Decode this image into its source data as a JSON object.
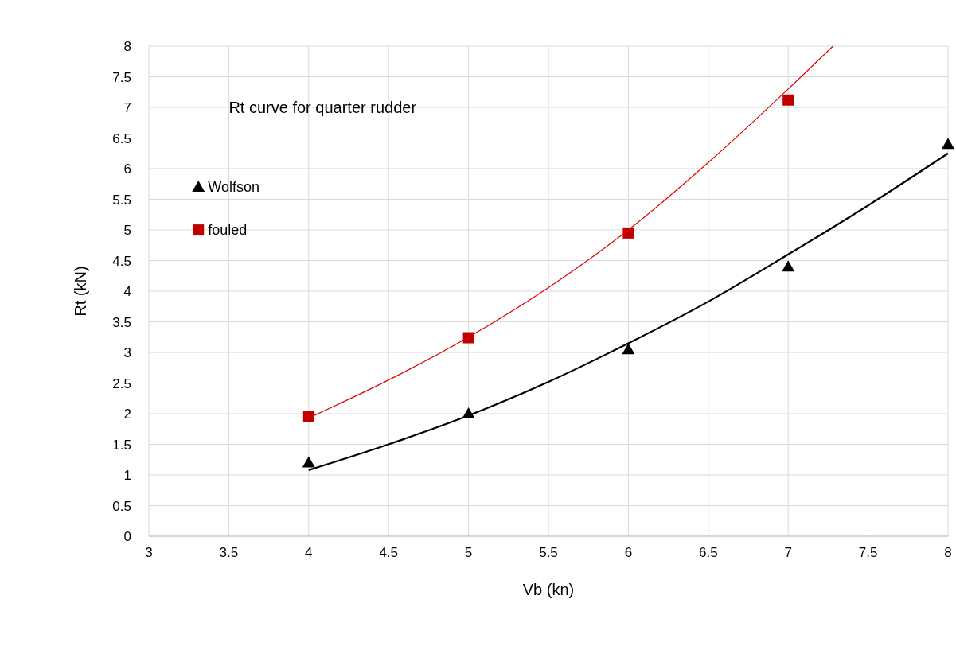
{
  "chart_data": {
    "type": "scatter",
    "title": "Rt curve for quarter rudder",
    "xlabel": "Vb (kn)",
    "ylabel": "Rt (kN)",
    "xlim": [
      3,
      8
    ],
    "xticks": [
      3,
      3.5,
      4,
      4.5,
      5,
      5.5,
      6,
      6.5,
      7,
      7.5,
      8
    ],
    "ylim": [
      0,
      8
    ],
    "yticks": [
      0,
      0.5,
      1,
      1.5,
      2,
      2.5,
      3,
      3.5,
      4,
      4.5,
      5,
      5.5,
      6,
      6.5,
      7,
      7.5,
      8
    ],
    "grid": true,
    "legend": "top left",
    "series": [
      {
        "name": "Wolfson",
        "color": "#000000",
        "marker": "triangle",
        "x": [
          4,
          5,
          6,
          7,
          8
        ],
        "values": [
          1.2,
          2.0,
          3.05,
          4.4,
          6.4
        ]
      },
      {
        "name": "fouled",
        "color": "#c00000",
        "marker": "square",
        "x": [
          4,
          5,
          6,
          7
        ],
        "values": [
          1.95,
          3.24,
          4.95,
          7.12
        ]
      },
      {
        "type": "line",
        "color": "#000000",
        "x": [
          4,
          4.5,
          5,
          5.5,
          6,
          6.5,
          7,
          7.5,
          8
        ],
        "values": [
          1.08,
          1.5,
          1.97,
          2.52,
          3.15,
          3.83,
          4.6,
          5.4,
          6.25
        ]
      },
      {
        "type": "line",
        "color": "#e00000",
        "x": [
          4,
          4.5,
          5,
          5.5,
          6,
          6.5,
          7,
          7.28
        ],
        "values": [
          1.93,
          2.55,
          3.25,
          4.06,
          5.0,
          6.1,
          7.3,
          8.0
        ]
      }
    ]
  }
}
